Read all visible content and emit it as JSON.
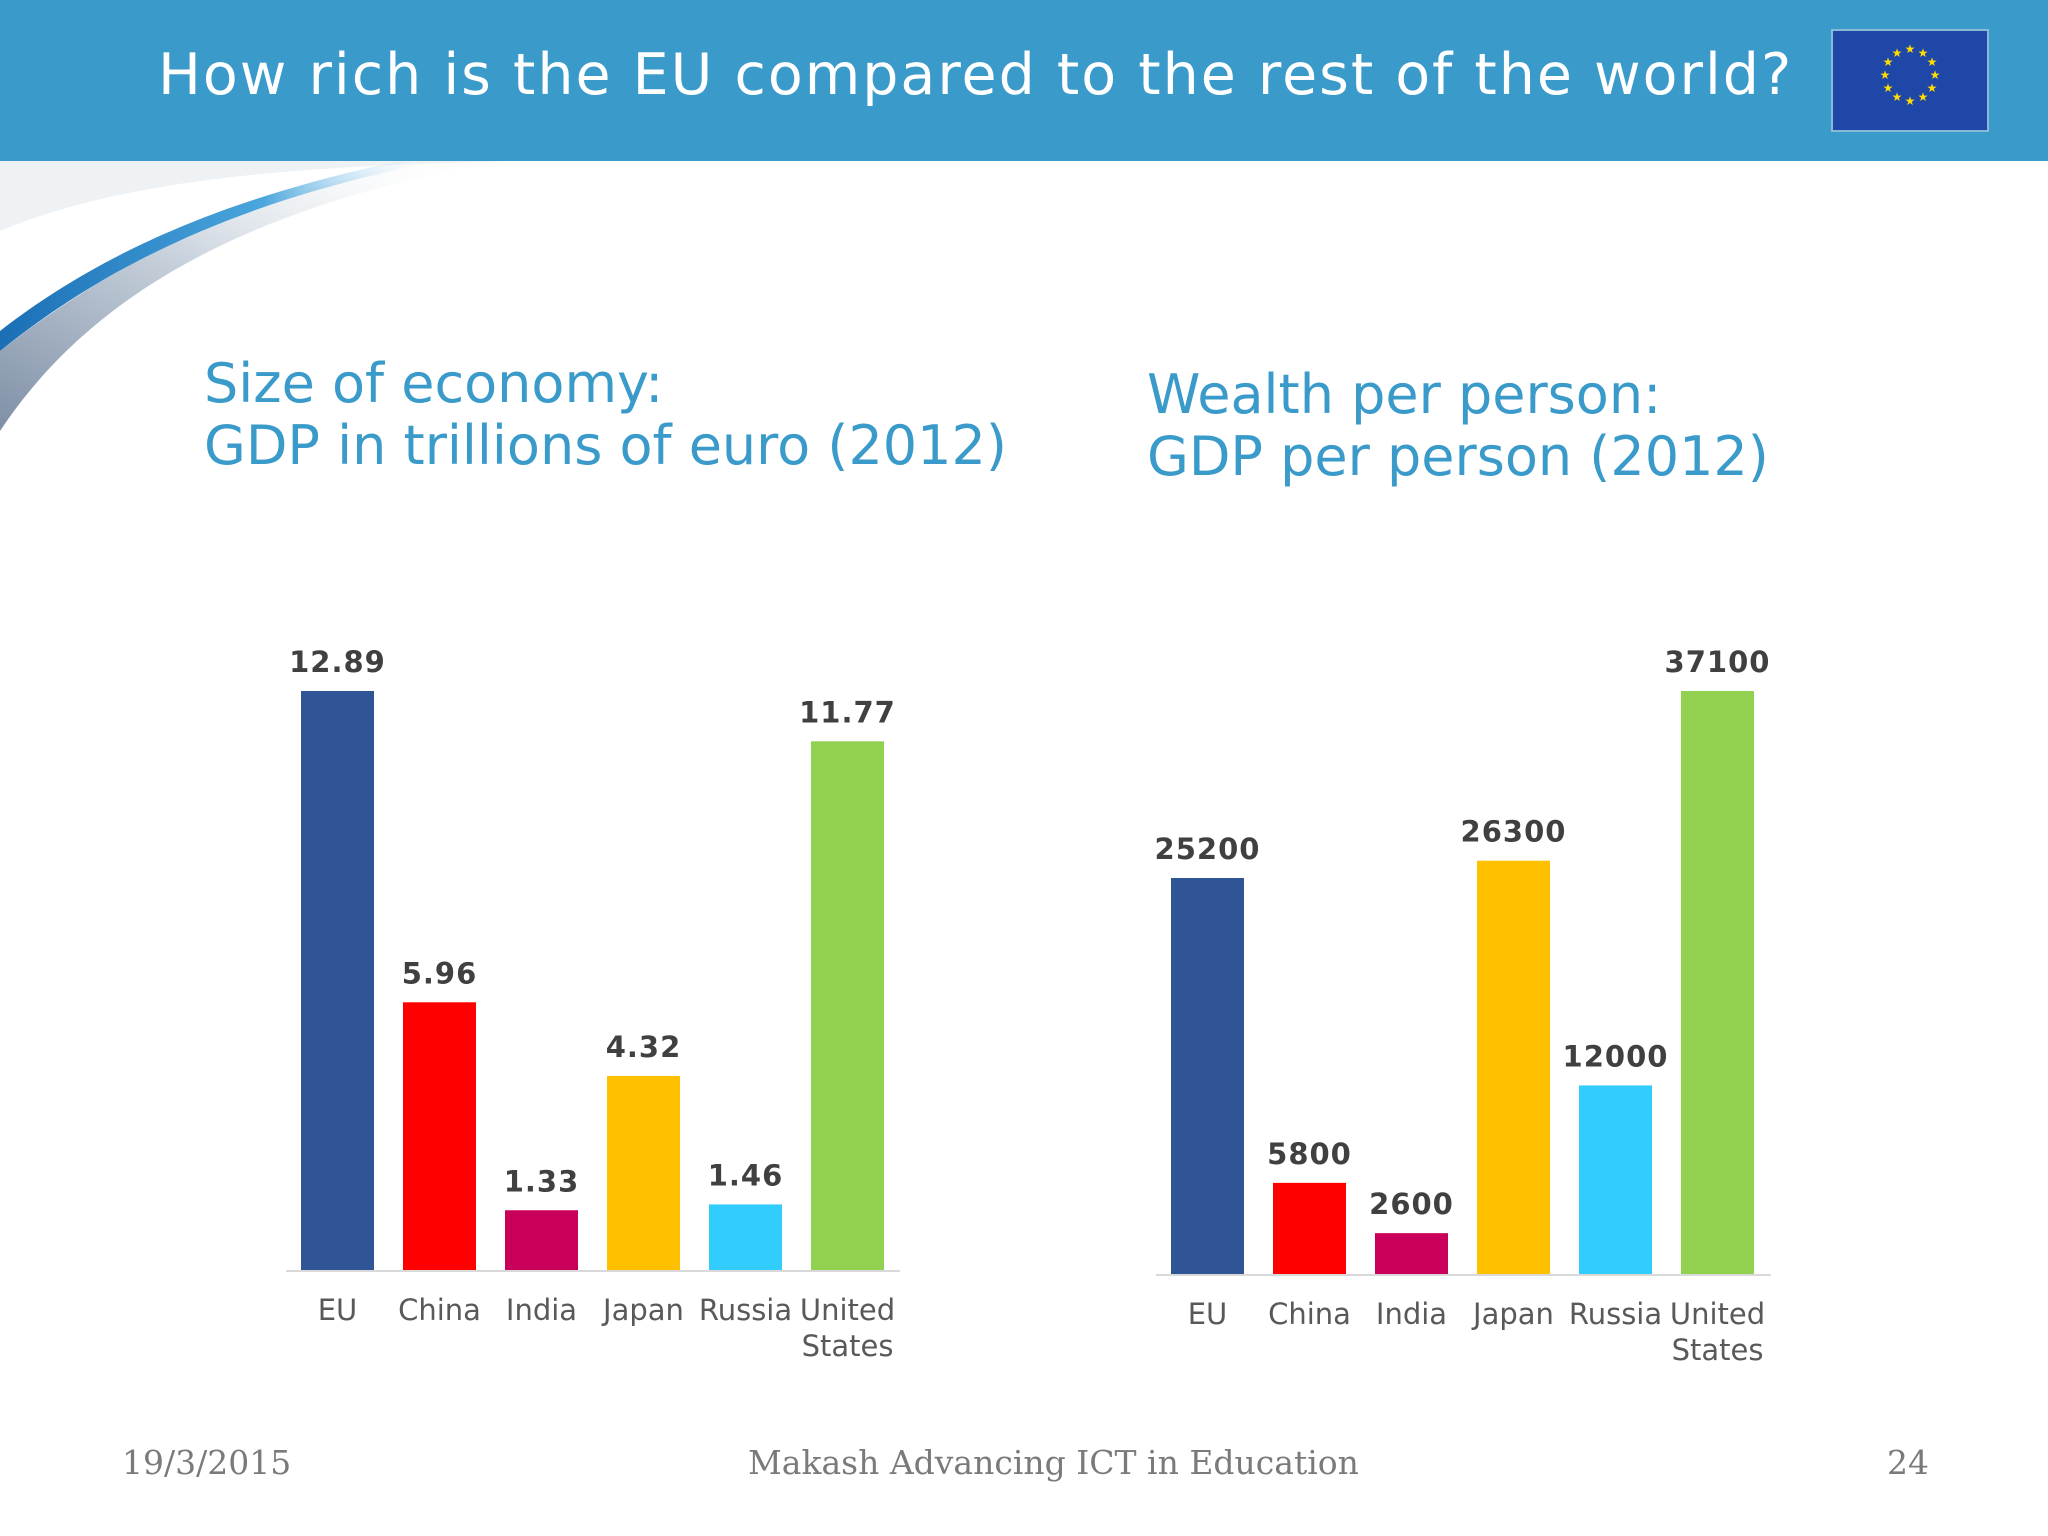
{
  "header": {
    "title": "How rich is the EU compared to the rest of the world?",
    "flag_icon": "eu-flag-icon"
  },
  "colors": {
    "header_bg": "#3a9ac9",
    "heading_text": "#3a9ac9",
    "bar_colors": [
      "#2f5597",
      "#ff0000",
      "#c8005a",
      "#ffc000",
      "#33ccff",
      "#92d050"
    ]
  },
  "chart_data": [
    {
      "type": "bar",
      "title_line1": "Size of economy:",
      "title_line2": "GDP in trillions of euro (2012)",
      "categories": [
        [
          "EU"
        ],
        [
          "China"
        ],
        [
          "India"
        ],
        [
          "Japan"
        ],
        [
          "Russia"
        ],
        [
          "United",
          "States"
        ]
      ],
      "values": [
        12.89,
        5.96,
        1.33,
        4.32,
        1.46,
        11.77
      ],
      "value_labels": [
        "12.89",
        "5.96",
        "1.33",
        "4.32",
        "1.46",
        "11.77"
      ],
      "ylim": [
        0,
        12.89
      ],
      "grid": false,
      "xlabel": "",
      "ylabel": ""
    },
    {
      "type": "bar",
      "title_line1": "Wealth per person:",
      "title_line2": "GDP per person (2012)",
      "categories": [
        [
          "EU"
        ],
        [
          "China"
        ],
        [
          "India"
        ],
        [
          "Japan"
        ],
        [
          "Russia"
        ],
        [
          "United",
          "States"
        ]
      ],
      "values": [
        25200,
        5800,
        2600,
        26300,
        12000,
        37100
      ],
      "value_labels": [
        "25200",
        "5800",
        "2600",
        "26300",
        "12000",
        "37100"
      ],
      "ylim": [
        0,
        37100
      ],
      "grid": false,
      "xlabel": "",
      "ylabel": ""
    }
  ],
  "footer": {
    "date": "19/3/2015",
    "center": "Makash Advancing ICT in Education",
    "page_number": "24"
  }
}
